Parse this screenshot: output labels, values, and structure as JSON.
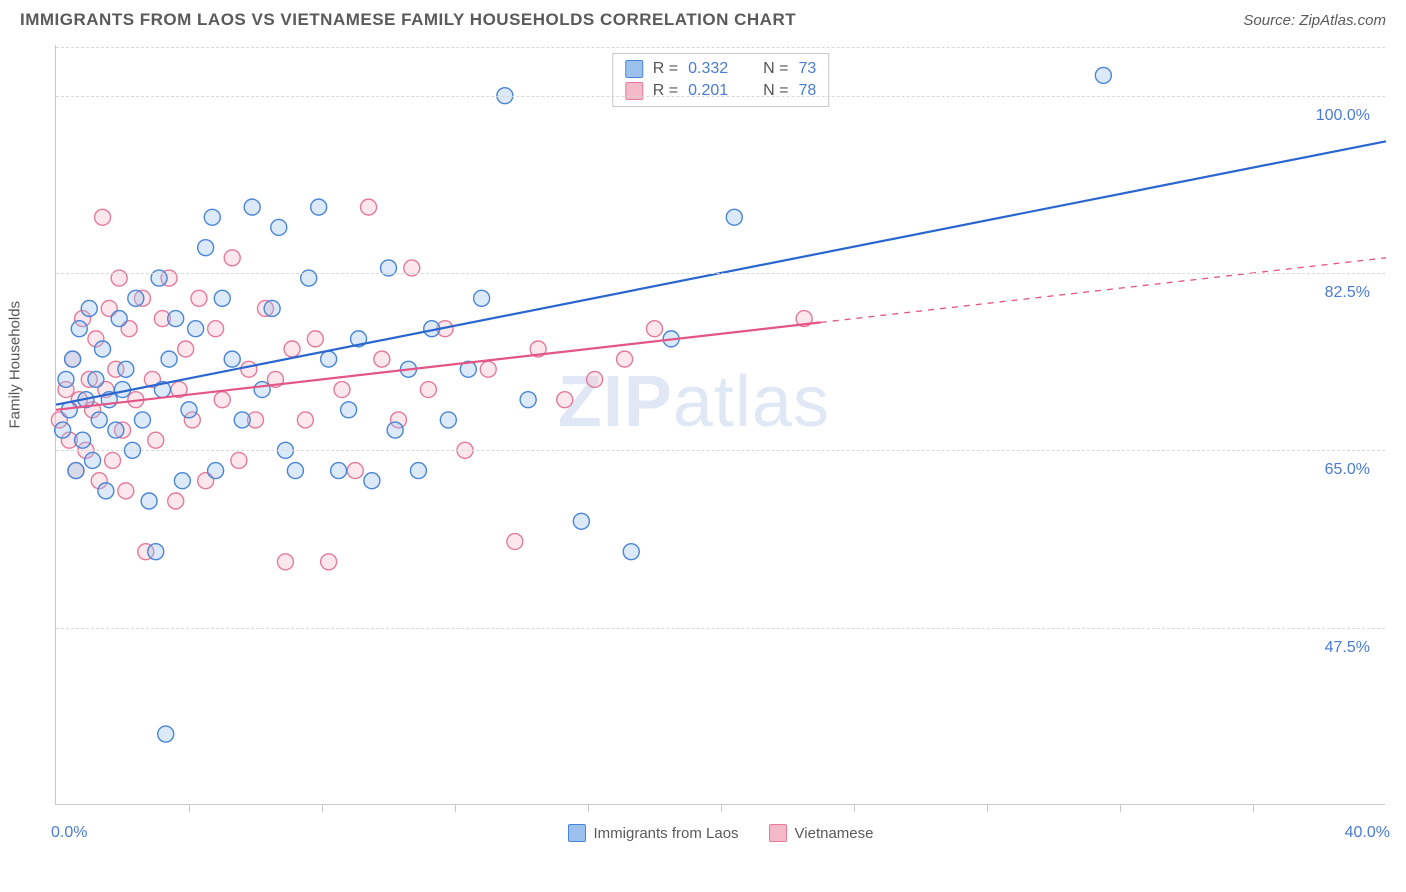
{
  "header": {
    "title": "IMMIGRANTS FROM LAOS VS VIETNAMESE FAMILY HOUSEHOLDS CORRELATION CHART",
    "source_prefix": "Source: ",
    "source_name": "ZipAtlas.com"
  },
  "watermark": {
    "zip": "ZIP",
    "atlas": "atlas"
  },
  "chart": {
    "type": "scatter",
    "xlim": [
      0,
      40
    ],
    "ylim": [
      30,
      105
    ],
    "x_left_label": "0.0%",
    "x_right_label": "40.0%",
    "y_axis_label": "Family Households",
    "y_ticks": [
      {
        "v": 47.5,
        "label": "47.5%"
      },
      {
        "v": 65.0,
        "label": "65.0%"
      },
      {
        "v": 82.5,
        "label": "82.5%"
      },
      {
        "v": 100.0,
        "label": "100.0%"
      }
    ],
    "x_ticks": [
      4,
      8,
      12,
      16,
      20,
      24,
      28,
      32,
      36
    ],
    "grid_color": "#d8d8d8",
    "border_color": "#c8c8c8",
    "background_color": "#ffffff",
    "marker_radius": 8,
    "marker_stroke_width": 1.4,
    "marker_fill_opacity": 0.35,
    "line_width": 2.2,
    "series": {
      "laos": {
        "label": "Immigrants from Laos",
        "color_fill": "#9cc1ee",
        "color_stroke": "#4a86d8",
        "line_color": "#2a66d0",
        "R": "0.332",
        "N": "73",
        "trend": {
          "x1": 0,
          "y1": 69.5,
          "x2": 40,
          "y2": 95.5,
          "dash_from_x": 40
        },
        "points": [
          [
            0.2,
            67
          ],
          [
            0.3,
            72
          ],
          [
            0.4,
            69
          ],
          [
            0.5,
            74
          ],
          [
            0.6,
            63
          ],
          [
            0.7,
            77
          ],
          [
            0.8,
            66
          ],
          [
            0.9,
            70
          ],
          [
            1.0,
            79
          ],
          [
            1.1,
            64
          ],
          [
            1.2,
            72
          ],
          [
            1.3,
            68
          ],
          [
            1.4,
            75
          ],
          [
            1.5,
            61
          ],
          [
            1.6,
            70
          ],
          [
            1.8,
            67
          ],
          [
            1.9,
            78
          ],
          [
            2.0,
            71
          ],
          [
            2.1,
            73
          ],
          [
            2.3,
            65
          ],
          [
            2.4,
            80
          ],
          [
            2.6,
            68
          ],
          [
            2.8,
            60
          ],
          [
            3.0,
            55
          ],
          [
            3.1,
            82
          ],
          [
            3.2,
            71
          ],
          [
            3.3,
            37
          ],
          [
            3.4,
            74
          ],
          [
            3.6,
            78
          ],
          [
            3.8,
            62
          ],
          [
            4.0,
            69
          ],
          [
            4.2,
            77
          ],
          [
            4.5,
            85
          ],
          [
            4.7,
            88
          ],
          [
            4.8,
            63
          ],
          [
            5.0,
            80
          ],
          [
            5.3,
            74
          ],
          [
            5.6,
            68
          ],
          [
            5.9,
            89
          ],
          [
            6.2,
            71
          ],
          [
            6.5,
            79
          ],
          [
            6.7,
            87
          ],
          [
            6.9,
            65
          ],
          [
            7.2,
            63
          ],
          [
            7.6,
            82
          ],
          [
            7.9,
            89
          ],
          [
            8.2,
            74
          ],
          [
            8.5,
            63
          ],
          [
            8.8,
            69
          ],
          [
            9.1,
            76
          ],
          [
            9.5,
            62
          ],
          [
            10.0,
            83
          ],
          [
            10.2,
            67
          ],
          [
            10.6,
            73
          ],
          [
            10.9,
            63
          ],
          [
            11.3,
            77
          ],
          [
            11.8,
            68
          ],
          [
            12.4,
            73
          ],
          [
            12.8,
            80
          ],
          [
            13.5,
            100
          ],
          [
            14.2,
            70
          ],
          [
            15.8,
            58
          ],
          [
            17.3,
            55
          ],
          [
            18.5,
            76
          ],
          [
            20.4,
            88
          ],
          [
            31.5,
            102
          ]
        ]
      },
      "viet": {
        "label": "Vietnamese",
        "color_fill": "#f4b9c9",
        "color_stroke": "#e67a9a",
        "line_color": "#e35585",
        "R": "0.201",
        "N": "78",
        "trend": {
          "x1": 0,
          "y1": 69.0,
          "x2": 40,
          "y2": 84.0,
          "dash_from_x": 23
        },
        "points": [
          [
            0.1,
            68
          ],
          [
            0.3,
            71
          ],
          [
            0.4,
            66
          ],
          [
            0.5,
            74
          ],
          [
            0.6,
            63
          ],
          [
            0.7,
            70
          ],
          [
            0.8,
            78
          ],
          [
            0.9,
            65
          ],
          [
            1.0,
            72
          ],
          [
            1.1,
            69
          ],
          [
            1.2,
            76
          ],
          [
            1.3,
            62
          ],
          [
            1.4,
            88
          ],
          [
            1.5,
            71
          ],
          [
            1.6,
            79
          ],
          [
            1.7,
            64
          ],
          [
            1.8,
            73
          ],
          [
            1.9,
            82
          ],
          [
            2.0,
            67
          ],
          [
            2.1,
            61
          ],
          [
            2.2,
            77
          ],
          [
            2.4,
            70
          ],
          [
            2.6,
            80
          ],
          [
            2.7,
            55
          ],
          [
            2.9,
            72
          ],
          [
            3.0,
            66
          ],
          [
            3.2,
            78
          ],
          [
            3.4,
            82
          ],
          [
            3.6,
            60
          ],
          [
            3.7,
            71
          ],
          [
            3.9,
            75
          ],
          [
            4.1,
            68
          ],
          [
            4.3,
            80
          ],
          [
            4.5,
            62
          ],
          [
            4.8,
            77
          ],
          [
            5.0,
            70
          ],
          [
            5.3,
            84
          ],
          [
            5.5,
            64
          ],
          [
            5.8,
            73
          ],
          [
            6.0,
            68
          ],
          [
            6.3,
            79
          ],
          [
            6.6,
            72
          ],
          [
            6.9,
            54
          ],
          [
            7.1,
            75
          ],
          [
            7.5,
            68
          ],
          [
            7.8,
            76
          ],
          [
            8.2,
            54
          ],
          [
            8.6,
            71
          ],
          [
            9.0,
            63
          ],
          [
            9.4,
            89
          ],
          [
            9.8,
            74
          ],
          [
            10.3,
            68
          ],
          [
            10.7,
            83
          ],
          [
            11.2,
            71
          ],
          [
            11.7,
            77
          ],
          [
            12.3,
            65
          ],
          [
            13.0,
            73
          ],
          [
            13.8,
            56
          ],
          [
            14.5,
            75
          ],
          [
            15.3,
            70
          ],
          [
            16.2,
            72
          ],
          [
            17.1,
            74
          ],
          [
            18.0,
            77
          ],
          [
            22.5,
            78
          ]
        ]
      }
    },
    "top_legend": {
      "R_prefix": "R =",
      "N_prefix": "N ="
    },
    "bottom_legend_order": [
      "laos",
      "viet"
    ]
  }
}
